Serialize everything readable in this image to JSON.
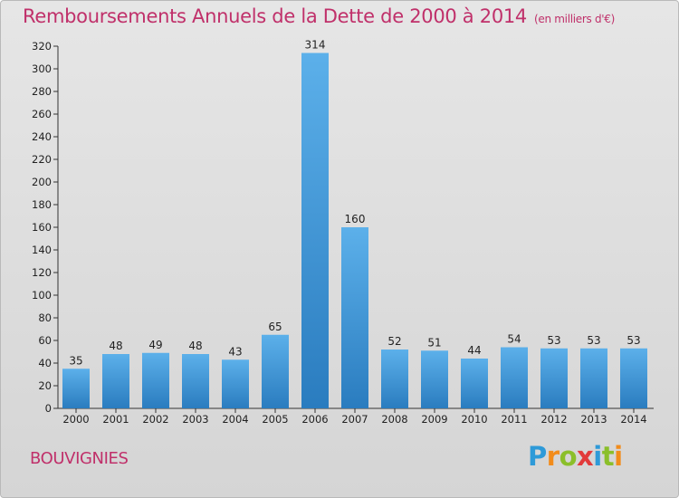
{
  "header": {
    "title": "Remboursements Annuels de la Dette de 2000 à 2014",
    "subtitle": "(en milliers d'€)"
  },
  "commune": "BOUVIGNIES",
  "logo": {
    "text": "Proxiti",
    "letters": [
      "P",
      "r",
      "o",
      "x",
      "i",
      "t",
      "i"
    ],
    "colors": [
      "#2e9ad8",
      "#f28c1b",
      "#8bbf2a",
      "#e23a3a",
      "#2e9ad8",
      "#8bbf2a",
      "#f28c1b"
    ]
  },
  "colors": {
    "bar_light": "#5cb0ea",
    "bar_dark": "#2a7cbf",
    "title": "#c0306a",
    "axis": "#333333"
  },
  "chart_data": {
    "type": "bar",
    "title": "Remboursements Annuels de la Dette de 2000 à 2014",
    "subtitle": "(en milliers d'€)",
    "xlabel": "",
    "ylabel": "",
    "categories": [
      "2000",
      "2001",
      "2002",
      "2003",
      "2004",
      "2005",
      "2006",
      "2007",
      "2008",
      "2009",
      "2010",
      "2011",
      "2012",
      "2013",
      "2014"
    ],
    "values": [
      35,
      48,
      49,
      48,
      43,
      65,
      314,
      160,
      52,
      51,
      44,
      54,
      53,
      53,
      53
    ],
    "ylim": [
      0,
      320
    ],
    "yticks": [
      0,
      20,
      40,
      60,
      80,
      100,
      120,
      140,
      160,
      180,
      200,
      220,
      240,
      260,
      280,
      300,
      320
    ],
    "grid": false,
    "legend": "none"
  }
}
